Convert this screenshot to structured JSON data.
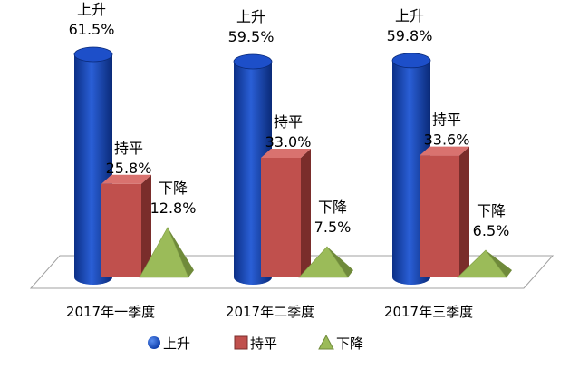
{
  "chart_data": {
    "type": "bar",
    "style": "3d-shapes",
    "categories": [
      "2017年一季度",
      "2017年二季度",
      "2017年三季度"
    ],
    "series": [
      {
        "name": "上升",
        "shape": "cylinder",
        "color": "#1f4fbf",
        "values": [
          61.5,
          59.5,
          59.8
        ],
        "labels": [
          "61.5%",
          "59.5%",
          "59.8%"
        ]
      },
      {
        "name": "持平",
        "shape": "box",
        "color": "#c0504d",
        "values": [
          25.8,
          33.0,
          33.6
        ],
        "labels": [
          "25.8%",
          "33.0%",
          "33.6%"
        ]
      },
      {
        "name": "下降",
        "shape": "pyramid",
        "color": "#9bbb59",
        "values": [
          12.8,
          7.5,
          6.5
        ],
        "labels": [
          "12.8%",
          "7.5%",
          "6.5%"
        ]
      }
    ],
    "unit": "%",
    "ylim": [
      0,
      70
    ],
    "legend": {
      "position": "bottom"
    },
    "grid": false
  }
}
